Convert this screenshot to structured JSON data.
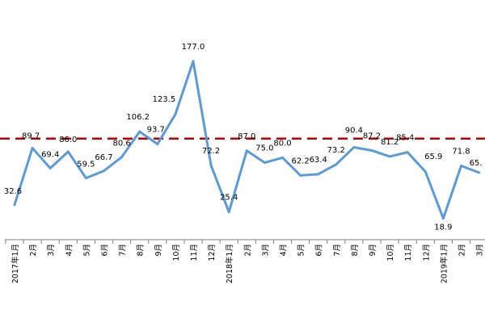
{
  "chart_data": {
    "type": "line",
    "title": "",
    "xlabel": "",
    "ylabel": "",
    "categories": [
      "2017年1月",
      "2月",
      "3月",
      "4月",
      "5月",
      "6月",
      "7月",
      "8月",
      "9月",
      "10月",
      "11月",
      "12月",
      "2018年1月",
      "2月",
      "3月",
      "4月",
      "5月",
      "6月",
      "7月",
      "8月",
      "9月",
      "10月",
      "11月",
      "12月",
      "2019年1月",
      "2月",
      "3月"
    ],
    "series": [
      {
        "values": [
          32.6,
          89.7,
          69.4,
          86.0,
          59.5,
          66.7,
          80.6,
          106.2,
          93.7,
          123.5,
          177.0,
          72.2,
          25.4,
          87.0,
          75.0,
          80.0,
          62.2,
          63.4,
          73.2,
          90.4,
          87.2,
          81.2,
          85.4,
          65.9,
          18.9,
          71.8,
          65.0
        ],
        "labels": [
          "32.6",
          "89.7",
          "69.4",
          "86.0",
          "59.5",
          "66.7",
          "80.6",
          "106.2",
          "93.7",
          "123.5",
          "177.0",
          "72.2",
          "25.4",
          "87.0",
          "75.0",
          "80.0",
          "62.2",
          "63.4",
          "73.2",
          "90.4",
          "87.2",
          "81.2",
          "85.4",
          "65.9",
          "18.9",
          "71.8",
          "65."
        ],
        "color": "#5B9BD5"
      }
    ],
    "reference_line": {
      "value": 99.2,
      "color": "#C00000",
      "style": "dashed"
    },
    "ylim": [
      0,
      200
    ],
    "grid": false,
    "legend": "none"
  }
}
